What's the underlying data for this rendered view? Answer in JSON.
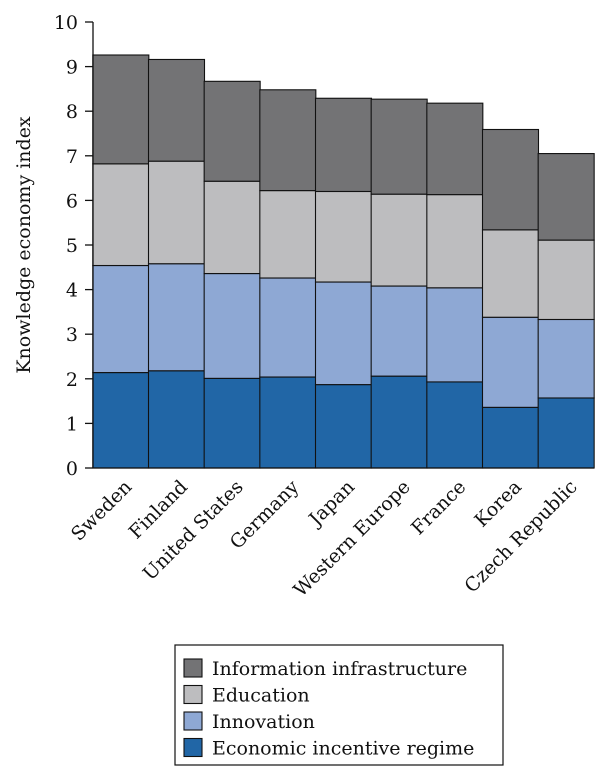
{
  "chart_data": {
    "type": "bar",
    "stacked": true,
    "title": "",
    "xlabel": "",
    "ylabel": "Knowledge economy index",
    "ylim": [
      0,
      10
    ],
    "yticks": [
      "0",
      "1",
      "2",
      "3",
      "4",
      "5",
      "6",
      "7",
      "8",
      "9",
      "10"
    ],
    "grid": false,
    "legend_position": "bottom",
    "categories": [
      "Sweden",
      "Finland",
      "United States",
      "Germany",
      "Japan",
      "Western Europe",
      "France",
      "Korea",
      "Czech Republic"
    ],
    "series": [
      {
        "name": "Economic incentive regime",
        "color": "#2166a6",
        "values": [
          2.14,
          2.18,
          2.01,
          2.04,
          1.87,
          2.06,
          1.93,
          1.36,
          1.57
        ]
      },
      {
        "name": "Innovation",
        "color": "#8ea8d4",
        "values": [
          2.4,
          2.4,
          2.35,
          2.22,
          2.3,
          2.02,
          2.11,
          2.02,
          1.76
        ]
      },
      {
        "name": "Education",
        "color": "#bdbdbf",
        "values": [
          2.28,
          2.3,
          2.07,
          1.96,
          2.03,
          2.06,
          2.09,
          1.96,
          1.78
        ]
      },
      {
        "name": "Information infrastructure",
        "color": "#737375",
        "values": [
          2.44,
          2.28,
          2.24,
          2.26,
          2.09,
          2.13,
          2.05,
          2.25,
          1.94
        ]
      }
    ],
    "legend_order": [
      "Information infrastructure",
      "Education",
      "Innovation",
      "Economic incentive regime"
    ]
  }
}
